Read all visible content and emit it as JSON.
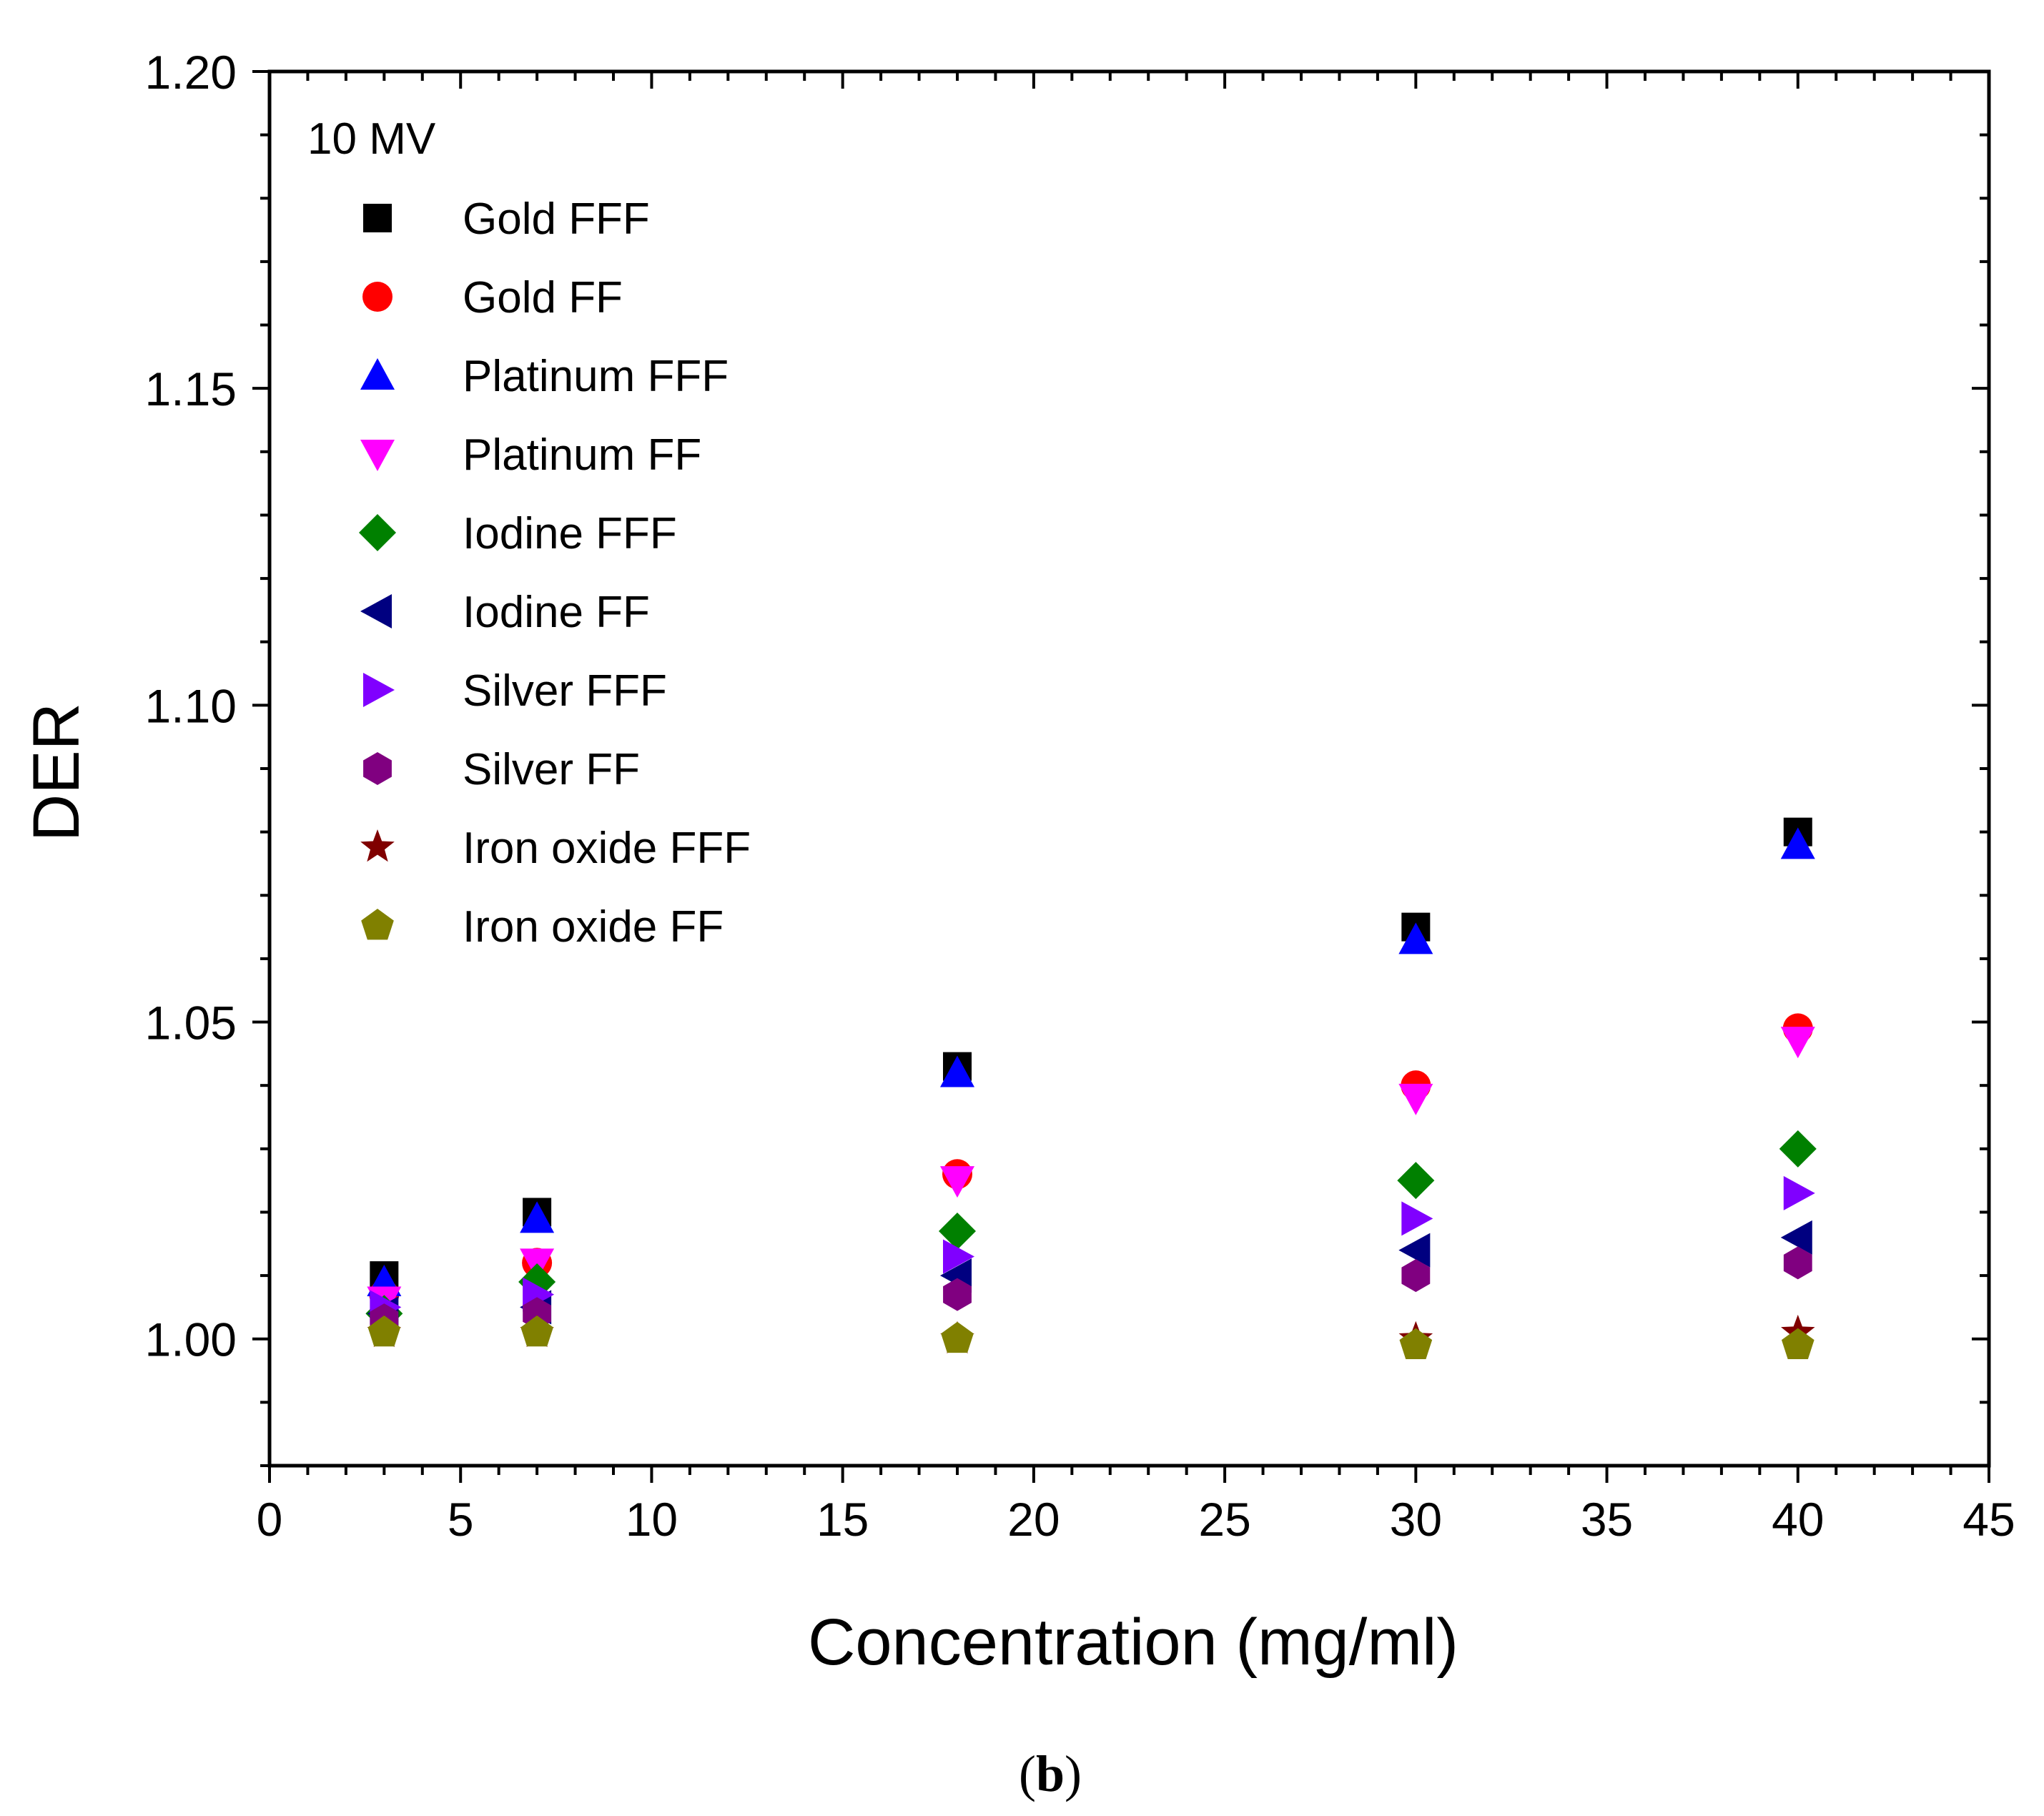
{
  "chart_data": {
    "type": "scatter",
    "title": "",
    "annotation": "10 MV",
    "xlabel": "Concentration (mg/ml)",
    "ylabel": "DER",
    "xlim": [
      0,
      45
    ],
    "ylim": [
      0.98,
      1.2
    ],
    "x_ticks": [
      0,
      5,
      10,
      15,
      20,
      25,
      30,
      35,
      40,
      45
    ],
    "y_ticks": [
      1.0,
      1.05,
      1.1,
      1.15,
      1.2
    ],
    "x_tick_labels": [
      "0",
      "5",
      "10",
      "15",
      "20",
      "25",
      "30",
      "35",
      "40",
      "45"
    ],
    "y_tick_labels": [
      "1.00",
      "1.05",
      "1.10",
      "1.15",
      "1.20"
    ],
    "x": [
      3,
      7,
      18,
      30,
      40
    ],
    "grid": false,
    "legend_position": "top-left",
    "series": [
      {
        "name": "Gold FFF",
        "marker": "square",
        "color": "#000000",
        "values": [
          1.01,
          1.02,
          1.043,
          1.065,
          1.08
        ]
      },
      {
        "name": "Gold FF",
        "marker": "circle",
        "color": "#ff0000",
        "values": [
          1.007,
          1.012,
          1.026,
          1.04,
          1.049
        ]
      },
      {
        "name": "Platinum FFF",
        "marker": "triangle-up",
        "color": "#0000ff",
        "values": [
          1.009,
          1.019,
          1.042,
          1.063,
          1.078
        ]
      },
      {
        "name": "Platinum FF",
        "marker": "triangle-down",
        "color": "#ff00ff",
        "values": [
          1.006,
          1.012,
          1.025,
          1.038,
          1.047
        ]
      },
      {
        "name": "Iodine FFF",
        "marker": "diamond",
        "color": "#008000",
        "values": [
          1.004,
          1.009,
          1.017,
          1.025,
          1.03
        ]
      },
      {
        "name": "Iodine FF",
        "marker": "triangle-left",
        "color": "#000080",
        "values": [
          1.004,
          1.005,
          1.01,
          1.014,
          1.016
        ]
      },
      {
        "name": "Silver FFF",
        "marker": "triangle-right",
        "color": "#8000ff",
        "values": [
          1.005,
          1.007,
          1.013,
          1.019,
          1.023
        ]
      },
      {
        "name": "Silver FF",
        "marker": "hexagon",
        "color": "#800080",
        "values": [
          1.003,
          1.004,
          1.007,
          1.01,
          1.012
        ]
      },
      {
        "name": "Iron oxide FFF",
        "marker": "star",
        "color": "#800000",
        "values": [
          1.001,
          1.001,
          1.0,
          1.0,
          1.001
        ]
      },
      {
        "name": "Iron oxide FF",
        "marker": "pentagon",
        "color": "#808000",
        "values": [
          1.001,
          1.001,
          1.0,
          0.999,
          0.999
        ]
      }
    ]
  },
  "caption": {
    "open": "(",
    "label": "b",
    "close": ")"
  }
}
